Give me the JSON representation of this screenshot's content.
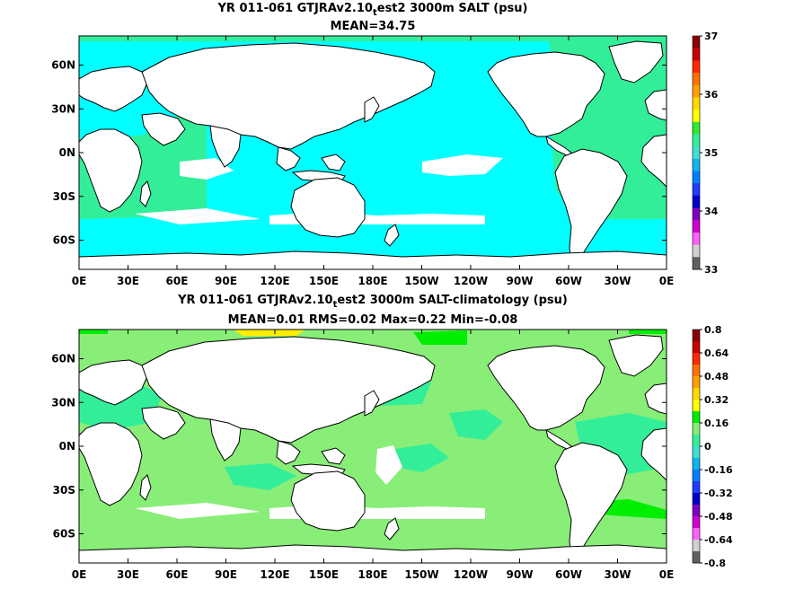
{
  "colors": {
    "cyan": "#00FFFF",
    "seagreen": "#33EE99",
    "lightgreen": "#88EE77",
    "green": "#00EE00",
    "yellow": "#FFEE00",
    "land": "#FFFFFF",
    "coast": "#000000"
  },
  "chart_data": [
    {
      "type": "heatmap",
      "title": "YR 011-061 GTJRAv2.10",
      "title_sub": "t",
      "title_rest": "est2 3000m SALT (psu)",
      "stats": "MEAN=34.75",
      "x_ticks": [
        "0E",
        "30E",
        "60E",
        "90E",
        "120E",
        "150E",
        "180E",
        "150W",
        "120W",
        "90W",
        "60W",
        "30W",
        "0E"
      ],
      "y_ticks": [
        "60N",
        "30N",
        "0N",
        "30S",
        "60S"
      ],
      "xlim": [
        0,
        360
      ],
      "ylim": [
        -80,
        80
      ],
      "colorbar": {
        "labels": [
          "37",
          "36",
          "35",
          "34",
          "33"
        ],
        "colors": [
          "#8B0000",
          "#C80000",
          "#FF2800",
          "#FF7000",
          "#FFA000",
          "#FFD800",
          "#FFFF00",
          "#30E830",
          "#33EE99",
          "#40E0D0",
          "#10B4F0",
          "#0080FF",
          "#1E3CFF",
          "#0000C8",
          "#8000C0",
          "#D000D0",
          "#FF60FF",
          "#D0D0D0",
          "#606060"
        ]
      },
      "field_description": "Ocean mostly 34.75-35.0 (cyan) in Pacific and Indian Ocean; Atlantic 35.0-35.25 (sea green)"
    },
    {
      "type": "heatmap",
      "title": "YR 011-061 GTJRAv2.10",
      "title_sub": "t",
      "title_rest": "est2 3000m SALT-climatology (psu)",
      "stats": "MEAN=0.01   RMS=0.02   Max=0.22   Min=-0.08",
      "x_ticks": [
        "0E",
        "30E",
        "60E",
        "90E",
        "120E",
        "150E",
        "180E",
        "150W",
        "120W",
        "90W",
        "60W",
        "30W",
        "0E"
      ],
      "y_ticks": [
        "60N",
        "30N",
        "0N",
        "30S",
        "60S"
      ],
      "xlim": [
        0,
        360
      ],
      "ylim": [
        -80,
        80
      ],
      "colorbar": {
        "labels": [
          "0.8",
          "0.64",
          "0.48",
          "0.32",
          "0.16",
          "0",
          "-0.16",
          "-0.32",
          "-0.48",
          "-0.64",
          "-0.8"
        ],
        "colors": [
          "#8B0000",
          "#C80000",
          "#FF2800",
          "#FF7000",
          "#FFA000",
          "#FFD800",
          "#FFFF00",
          "#00EE00",
          "#88EE77",
          "#33EE99",
          "#40E0D0",
          "#10B4F0",
          "#0080FF",
          "#1E3CFF",
          "#0000C8",
          "#8000C0",
          "#D000D0",
          "#FF60FF",
          "#D0D0D0",
          "#606060"
        ]
      },
      "field_description": "Mostly 0 to 0.04 (light green), small areas 0.04-0.08 (green) and 0.16-0.24 (yellow) near Antarctica"
    }
  ]
}
